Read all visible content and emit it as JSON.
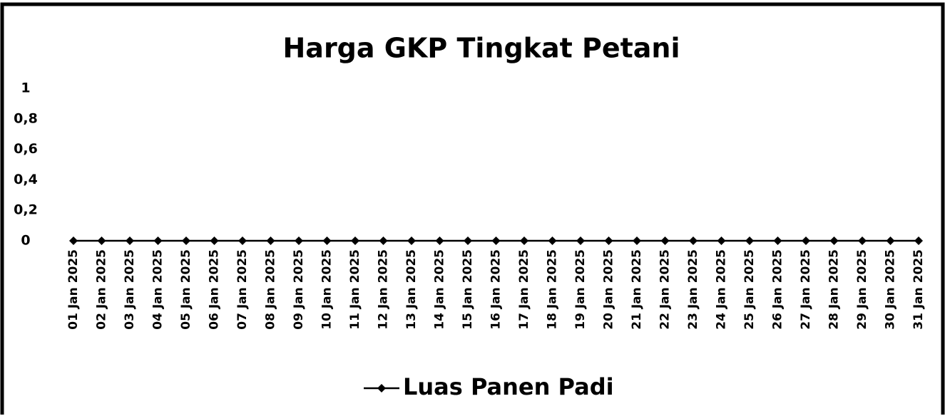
{
  "chart_data": {
    "type": "line",
    "title": "Harga GKP Tingkat Petani",
    "x": [
      "01 Jan 2025",
      "02 Jan 2025",
      "03 Jan 2025",
      "04 Jan 2025",
      "05 Jan 2025",
      "06 Jan 2025",
      "07 Jan 2025",
      "08 Jan 2025",
      "09 Jan 2025",
      "10 Jan 2025",
      "11 Jan 2025",
      "12 Jan 2025",
      "13 Jan 2025",
      "14 Jan 2025",
      "15 Jan 2025",
      "16 Jan 2025",
      "17 Jan 2025",
      "18 Jan 2025",
      "19 Jan 2025",
      "20 Jan 2025",
      "21 Jan 2025",
      "22 Jan 2025",
      "23 Jan 2025",
      "24 Jan 2025",
      "25 Jan 2025",
      "26 Jan 2025",
      "27 Jan 2025",
      "28 Jan 2025",
      "29 Jan 2025",
      "30 Jan 2025",
      "31 Jan 2025"
    ],
    "series": [
      {
        "name": "Luas Panen Padi",
        "color": "#000000",
        "values": [
          0,
          0,
          0,
          0,
          0,
          0,
          0,
          0,
          0,
          0,
          0,
          0,
          0,
          0,
          0,
          0,
          0,
          0,
          0,
          0,
          0,
          0,
          0,
          0,
          0,
          0,
          0,
          0,
          0,
          0,
          0
        ]
      }
    ],
    "ylim": [
      0,
      1
    ],
    "yticks": [
      0,
      {
        "value": 0.2,
        "label": "0,2"
      },
      {
        "value": 0.4,
        "label": "0,4"
      },
      {
        "value": 0.6,
        "label": "0,6"
      },
      {
        "value": 0.8,
        "label": "0,8"
      },
      1
    ],
    "grid": false,
    "legend": "bottom"
  }
}
